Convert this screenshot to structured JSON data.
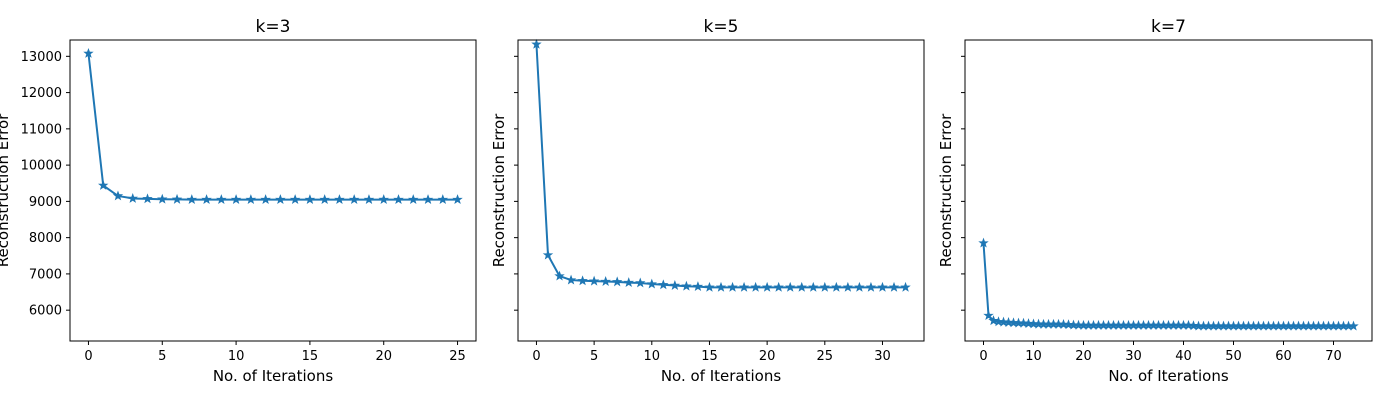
{
  "figure": {
    "background": "#ffffff"
  },
  "chart_data": [
    {
      "type": "line",
      "title": "k=3",
      "xlabel": "No. of Iterations",
      "ylabel": "Reconstruction Error",
      "xlim": [
        -1.25,
        26.25
      ],
      "ylim": [
        5150,
        13450
      ],
      "xticks": [
        0,
        5,
        10,
        15,
        20,
        25
      ],
      "yticks": [
        6000,
        7000,
        8000,
        9000,
        10000,
        11000,
        12000,
        13000
      ],
      "show_ytick_labels": true,
      "grid": false,
      "marker": "star",
      "color": "#1f77b4",
      "series": [
        {
          "x": [
            0,
            1,
            2,
            3,
            4,
            5,
            6,
            7,
            8,
            9,
            10,
            11,
            12,
            13,
            14,
            15,
            16,
            17,
            18,
            19,
            20,
            21,
            22,
            23,
            24,
            25
          ],
          "values": [
            13080,
            9440,
            9150,
            9080,
            9070,
            9060,
            9055,
            9050,
            9050,
            9050,
            9050,
            9050,
            9050,
            9050,
            9050,
            9050,
            9050,
            9050,
            9050,
            9050,
            9050,
            9050,
            9050,
            9050,
            9050,
            9050
          ]
        }
      ]
    },
    {
      "type": "line",
      "title": "k=5",
      "xlabel": "No. of Iterations",
      "ylabel": "Reconstruction Error",
      "xlim": [
        -1.6,
        33.6
      ],
      "ylim": [
        5150,
        13450
      ],
      "xticks": [
        0,
        5,
        10,
        15,
        20,
        25,
        30
      ],
      "yticks": [
        6000,
        7000,
        8000,
        9000,
        10000,
        11000,
        12000,
        13000
      ],
      "show_ytick_labels": false,
      "grid": false,
      "marker": "star",
      "color": "#1f77b4",
      "series": [
        {
          "x": [
            0,
            1,
            2,
            3,
            4,
            5,
            6,
            7,
            8,
            9,
            10,
            11,
            12,
            13,
            14,
            15,
            16,
            17,
            18,
            19,
            20,
            21,
            22,
            23,
            24,
            25,
            26,
            27,
            28,
            29,
            30,
            31,
            32
          ],
          "values": [
            13330,
            7520,
            6940,
            6830,
            6810,
            6800,
            6790,
            6780,
            6760,
            6750,
            6720,
            6700,
            6680,
            6660,
            6650,
            6630,
            6630,
            6630,
            6630,
            6630,
            6630,
            6630,
            6630,
            6630,
            6630,
            6630,
            6630,
            6630,
            6630,
            6630,
            6630,
            6630,
            6630
          ]
        }
      ]
    },
    {
      "type": "line",
      "title": "k=7",
      "xlabel": "No. of Iterations",
      "ylabel": "Reconstruction Error",
      "xlim": [
        -3.7,
        77.7
      ],
      "ylim": [
        5150,
        13450
      ],
      "xticks": [
        0,
        10,
        20,
        30,
        40,
        50,
        60,
        70
      ],
      "yticks": [
        6000,
        7000,
        8000,
        9000,
        10000,
        11000,
        12000,
        13000
      ],
      "show_ytick_labels": false,
      "grid": false,
      "marker": "star",
      "color": "#1f77b4",
      "series": [
        {
          "x": [
            0,
            1,
            2,
            3,
            4,
            5,
            6,
            7,
            8,
            9,
            10,
            11,
            12,
            13,
            14,
            15,
            16,
            17,
            18,
            19,
            20,
            21,
            22,
            23,
            24,
            25,
            26,
            27,
            28,
            29,
            30,
            31,
            32,
            33,
            34,
            35,
            36,
            37,
            38,
            39,
            40,
            41,
            42,
            43,
            44,
            45,
            46,
            47,
            48,
            49,
            50,
            51,
            52,
            53,
            54,
            55,
            56,
            57,
            58,
            59,
            60,
            61,
            62,
            63,
            64,
            65,
            66,
            67,
            68,
            69,
            70,
            71,
            72,
            73,
            74
          ],
          "values": [
            7850,
            5850,
            5710,
            5680,
            5670,
            5660,
            5650,
            5645,
            5640,
            5630,
            5620,
            5615,
            5610,
            5610,
            5610,
            5610,
            5605,
            5600,
            5590,
            5585,
            5580,
            5580,
            5580,
            5580,
            5580,
            5580,
            5580,
            5580,
            5580,
            5580,
            5580,
            5580,
            5580,
            5580,
            5580,
            5580,
            5580,
            5580,
            5580,
            5580,
            5580,
            5580,
            5570,
            5560,
            5560,
            5560,
            5560,
            5560,
            5560,
            5560,
            5560,
            5560,
            5560,
            5560,
            5560,
            5560,
            5560,
            5560,
            5560,
            5560,
            5560,
            5560,
            5560,
            5560,
            5560,
            5560,
            5560,
            5560,
            5560,
            5560,
            5560,
            5560,
            5560,
            5560,
            5560
          ]
        }
      ]
    }
  ]
}
